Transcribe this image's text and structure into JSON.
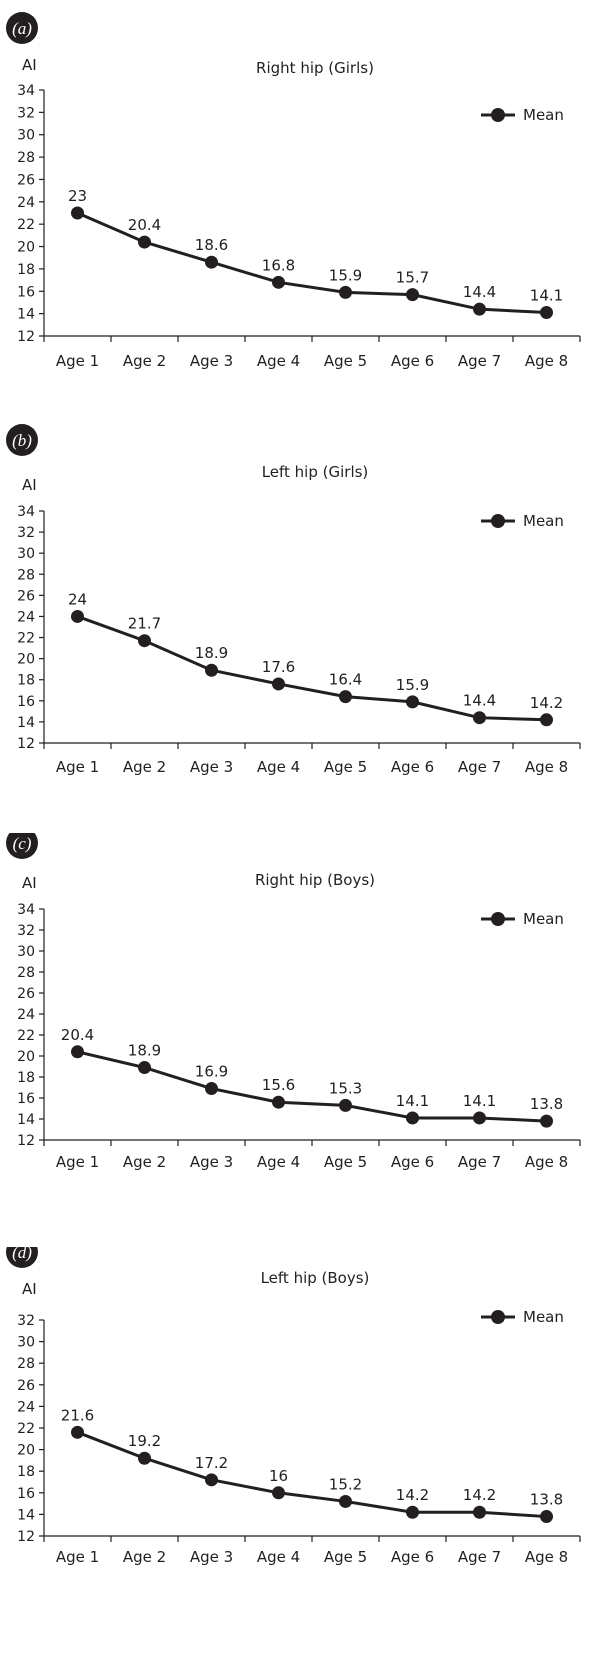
{
  "chart_data": [
    {
      "type": "line",
      "panel_label": "(a)",
      "title": "Right hip (Girls)",
      "ylabel": "AI",
      "xlabel": "",
      "categories": [
        "Age 1",
        "Age 2",
        "Age 3",
        "Age 4",
        "Age 5",
        "Age 6",
        "Age 7",
        "Age 8"
      ],
      "series": [
        {
          "name": "Mean",
          "values": [
            23,
            20.4,
            18.6,
            16.8,
            15.9,
            15.7,
            14.4,
            14.1
          ]
        }
      ],
      "data_labels": [
        "23",
        "20.4",
        "18.6",
        "16.8",
        "15.9",
        "15.7",
        "14.4",
        "14.1"
      ],
      "ylim": [
        12,
        34
      ],
      "yticks": [
        12,
        14,
        16,
        18,
        20,
        22,
        24,
        26,
        28,
        30,
        32,
        34
      ],
      "grid": false,
      "legend_position": "top-right"
    },
    {
      "type": "line",
      "panel_label": "(b)",
      "title": "Left hip (Girls)",
      "ylabel": "AI",
      "xlabel": "",
      "categories": [
        "Age 1",
        "Age 2",
        "Age 3",
        "Age 4",
        "Age 5",
        "Age 6",
        "Age 7",
        "Age 8"
      ],
      "series": [
        {
          "name": "Mean",
          "values": [
            24,
            21.7,
            18.9,
            17.6,
            16.4,
            15.9,
            14.4,
            14.2
          ]
        }
      ],
      "data_labels": [
        "24",
        "21.7",
        "18.9",
        "17.6",
        "16.4",
        "15.9",
        "14.4",
        "14.2"
      ],
      "ylim": [
        12,
        34
      ],
      "yticks": [
        12,
        14,
        16,
        18,
        20,
        22,
        24,
        26,
        28,
        30,
        32,
        34
      ],
      "grid": false,
      "legend_position": "top-right"
    },
    {
      "type": "line",
      "panel_label": "(c)",
      "title": "Right hip (Boys)",
      "ylabel": "AI",
      "xlabel": "",
      "categories": [
        "Age 1",
        "Age 2",
        "Age 3",
        "Age 4",
        "Age 5",
        "Age 6",
        "Age 7",
        "Age 8"
      ],
      "series": [
        {
          "name": "Mean",
          "values": [
            20.4,
            18.9,
            16.9,
            15.6,
            15.3,
            14.1,
            14.1,
            13.8
          ]
        }
      ],
      "data_labels": [
        "20.4",
        "18.9",
        "16.9",
        "15.6",
        "15.3",
        "14.1",
        "14.1",
        "13.8"
      ],
      "ylim": [
        12,
        34
      ],
      "yticks": [
        12,
        14,
        16,
        18,
        20,
        22,
        24,
        26,
        28,
        30,
        32,
        34
      ],
      "grid": false,
      "legend_position": "top-right"
    },
    {
      "type": "line",
      "panel_label": "(d)",
      "title": "Left hip (Boys)",
      "ylabel": "AI",
      "xlabel": "",
      "categories": [
        "Age 1",
        "Age 2",
        "Age 3",
        "Age 4",
        "Age 5",
        "Age 6",
        "Age 7",
        "Age 8"
      ],
      "series": [
        {
          "name": "Mean",
          "values": [
            21.6,
            19.2,
            17.2,
            16,
            15.2,
            14.2,
            14.2,
            13.8
          ]
        }
      ],
      "data_labels": [
        "21.6",
        "19.2",
        "17.2",
        "16",
        "15.2",
        "14.2",
        "14.2",
        "13.8"
      ],
      "ylim": [
        12,
        32
      ],
      "yticks": [
        12,
        14,
        16,
        18,
        20,
        22,
        24,
        26,
        28,
        30,
        32
      ],
      "grid": false,
      "legend_position": "top-right"
    }
  ]
}
